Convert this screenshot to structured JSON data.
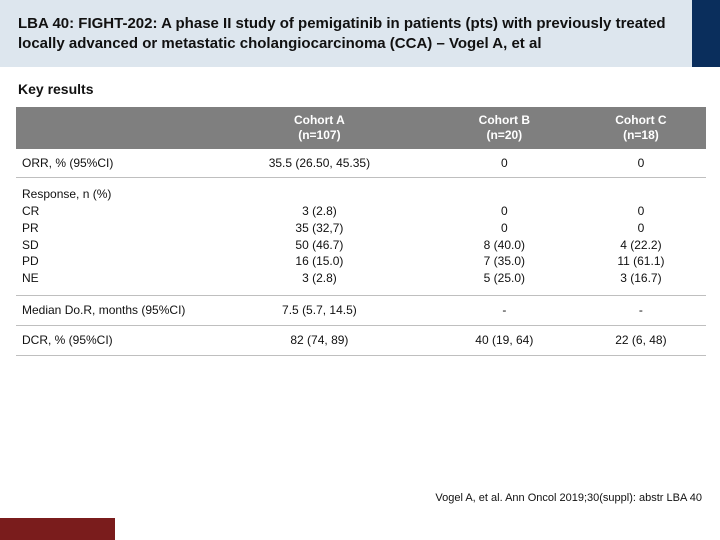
{
  "colors": {
    "title_band_bg": "#dde6ee",
    "title_band_accent": "#0a2e5c",
    "table_header_bg": "#7f7f7f",
    "table_header_fg": "#ffffff",
    "row_border": "#bfbfbf",
    "footer_accent": "#7a1c1c",
    "page_bg": "#ffffff",
    "text": "#111111"
  },
  "title": "LBA 40: FIGHT-202: A phase II study of pemigatinib in patients (pts) with previously treated locally advanced or metastatic cholangiocarcinoma (CCA) – Vogel A, et al",
  "section": "Key results",
  "table": {
    "columns": [
      {
        "label_line1": "Cohort A",
        "label_line2": "(n=107)"
      },
      {
        "label_line1": "Cohort B",
        "label_line2": "(n=20)"
      },
      {
        "label_line1": "Cohort C",
        "label_line2": "(n=18)"
      }
    ],
    "rows": [
      {
        "type": "single",
        "label": "ORR, % (95%CI)",
        "cells": [
          "35.5 (26.50, 45.35)",
          "0",
          "0"
        ]
      },
      {
        "type": "multi",
        "label": "Response, n (%)\n  CR\n  PR\n  SD\n  PD\n  NE",
        "cells": [
          "\n3 (2.8)\n35 (32,7)\n50 (46.7)\n16 (15.0)\n3 (2.8)",
          "\n0\n0\n8 (40.0)\n7 (35.0)\n5 (25.0)",
          "\n0\n0\n4 (22.2)\n11 (61.1)\n3 (16.7)"
        ]
      },
      {
        "type": "single",
        "label": "Median Do.R, months (95%CI)",
        "cells": [
          "7.5 (5.7, 14.5)",
          "-",
          "-"
        ]
      },
      {
        "type": "single",
        "label": "DCR, % (95%CI)",
        "cells": [
          "82 (74, 89)",
          "40 (19, 64)",
          "22 (6, 48)"
        ]
      }
    ]
  },
  "citation": "Vogel A, et al. Ann Oncol 2019;30(suppl): abstr LBA 40"
}
